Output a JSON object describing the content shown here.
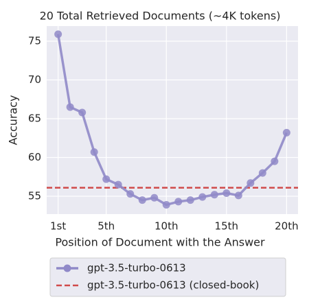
{
  "chart_data": {
    "type": "line",
    "title": "20 Total Retrieved Documents (~4K tokens)",
    "x_label": "Position of Document with the Answer",
    "y_label": "Accuracy",
    "x": [
      1,
      2,
      3,
      4,
      5,
      6,
      7,
      8,
      9,
      10,
      11,
      12,
      13,
      14,
      15,
      16,
      17,
      18,
      19,
      20
    ],
    "series": [
      {
        "name": "gpt-3.5-turbo-0613",
        "color": "#9089c8",
        "values": [
          75.9,
          66.5,
          65.8,
          60.7,
          57.2,
          56.5,
          55.3,
          54.5,
          54.8,
          53.9,
          54.3,
          54.5,
          54.9,
          55.2,
          55.4,
          55.1,
          56.7,
          58.0,
          59.5,
          63.2
        ]
      }
    ],
    "reference_lines": [
      {
        "name": "gpt-3.5-turbo-0613 (closed-book)",
        "color": "#d04a4a",
        "value": 56.1
      }
    ],
    "xlim": [
      0.05,
      20.95
    ],
    "xticks": [
      {
        "value": 1,
        "label": "1st"
      },
      {
        "value": 5,
        "label": "5th"
      },
      {
        "value": 10,
        "label": "10th"
      },
      {
        "value": 15,
        "label": "15th"
      },
      {
        "value": 20,
        "label": "20th"
      }
    ],
    "ylim": [
      52.7,
      76.95
    ],
    "yticks": [
      55,
      60,
      65,
      70,
      75
    ],
    "grid": true
  }
}
